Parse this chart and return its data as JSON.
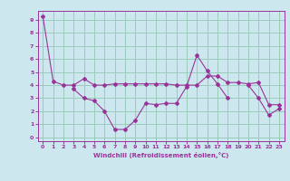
{
  "xlabel": "Windchill (Refroidissement éolien,°C)",
  "background_color": "#cce8ee",
  "grid_color": "#99ccbb",
  "line_color": "#993399",
  "xlim": [
    -0.5,
    23.5
  ],
  "ylim": [
    -0.3,
    9.7
  ],
  "xticks": [
    0,
    1,
    2,
    3,
    4,
    5,
    6,
    7,
    8,
    9,
    10,
    11,
    12,
    13,
    14,
    15,
    16,
    17,
    18,
    19,
    20,
    21,
    22,
    23
  ],
  "yticks": [
    0,
    1,
    2,
    3,
    4,
    5,
    6,
    7,
    8,
    9
  ],
  "series": [
    [
      9.3,
      4.3,
      4.0,
      4.0,
      4.5,
      4.0,
      4.0,
      4.1,
      4.1,
      4.1,
      4.1,
      4.1,
      4.1,
      4.0,
      4.0,
      4.0,
      4.7,
      4.7,
      4.2,
      4.2,
      4.1,
      4.2,
      2.5,
      2.5
    ],
    [
      null,
      null,
      null,
      3.7,
      3.0,
      2.8,
      2.0,
      0.6,
      0.6,
      1.3,
      2.6,
      2.5,
      2.6,
      2.6,
      3.9,
      6.3,
      5.1,
      4.1,
      3.0,
      null,
      null,
      null,
      null,
      null
    ],
    [
      null,
      null,
      null,
      null,
      null,
      null,
      null,
      null,
      null,
      null,
      null,
      null,
      null,
      null,
      null,
      null,
      null,
      null,
      null,
      null,
      4.0,
      3.0,
      1.7,
      2.2
    ]
  ]
}
